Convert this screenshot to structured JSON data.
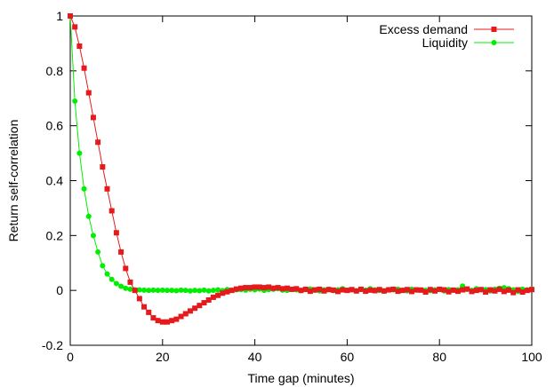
{
  "chart_data": {
    "type": "line",
    "title": "",
    "xlabel": "Time gap (minutes)",
    "ylabel": "Return self-correlation",
    "xlim": [
      0,
      100
    ],
    "ylim": [
      -0.2,
      1
    ],
    "xticks": [
      0,
      20,
      40,
      60,
      80,
      100
    ],
    "yticks": [
      -0.2,
      0,
      0.2,
      0.4,
      0.6,
      0.8,
      1
    ],
    "xtick_labels": [
      "0",
      "20",
      "40",
      "60",
      "80",
      "100"
    ],
    "ytick_labels": [
      "-0.2",
      "0",
      "0.2",
      "0.4",
      "0.6",
      "0.8",
      "1"
    ],
    "grid": false,
    "legend_position": "top-right",
    "series": [
      {
        "name": "Excess demand",
        "color": "#e41a1c",
        "marker": "square",
        "x": [
          0,
          1,
          2,
          3,
          4,
          5,
          6,
          7,
          8,
          9,
          10,
          11,
          12,
          13,
          14,
          15,
          16,
          17,
          18,
          19,
          20,
          21,
          22,
          23,
          24,
          25,
          26,
          27,
          28,
          29,
          30,
          31,
          32,
          33,
          34,
          35,
          36,
          37,
          38,
          39,
          40,
          41,
          42,
          43,
          44,
          45,
          46,
          47,
          48,
          49,
          50,
          51,
          52,
          53,
          54,
          55,
          56,
          57,
          58,
          59,
          60,
          61,
          62,
          63,
          64,
          65,
          66,
          67,
          68,
          69,
          70,
          71,
          72,
          73,
          74,
          75,
          76,
          77,
          78,
          79,
          80,
          81,
          82,
          83,
          84,
          85,
          86,
          87,
          88,
          89,
          90,
          91,
          92,
          93,
          94,
          95,
          96,
          97,
          98,
          99,
          100
        ],
        "y": [
          1.0,
          0.96,
          0.89,
          0.81,
          0.72,
          0.63,
          0.54,
          0.45,
          0.37,
          0.29,
          0.21,
          0.14,
          0.08,
          0.03,
          0.0,
          -0.03,
          -0.06,
          -0.08,
          -0.1,
          -0.11,
          -0.115,
          -0.115,
          -0.11,
          -0.105,
          -0.095,
          -0.085,
          -0.075,
          -0.065,
          -0.055,
          -0.045,
          -0.035,
          -0.025,
          -0.018,
          -0.01,
          -0.005,
          0.0,
          0.005,
          0.008,
          0.01,
          0.01,
          0.012,
          0.012,
          0.01,
          0.012,
          0.008,
          0.01,
          0.006,
          0.008,
          0.004,
          0.006,
          0.0,
          0.004,
          -0.003,
          0.002,
          0.004,
          -0.002,
          0.003,
          0.001,
          -0.004,
          0.002,
          0.0,
          0.003,
          -0.002,
          0.004,
          -0.003,
          0.001,
          -0.001,
          0.003,
          -0.002,
          0.002,
          0.004,
          -0.003,
          0.0,
          0.003,
          -0.004,
          0.002,
          0.001,
          -0.006,
          0.003,
          -0.002,
          0.004,
          0.002,
          -0.005,
          0.001,
          -0.003,
          0.002,
          0.005,
          -0.004,
          0.0,
          0.003,
          -0.006,
          0.002,
          -0.002,
          0.004,
          -0.004,
          0.001,
          -0.008,
          0.002,
          -0.006,
          0.0,
          0.003
        ]
      },
      {
        "name": "Liquidity",
        "color": "#00ee00",
        "marker": "circle",
        "x": [
          0,
          1,
          2,
          3,
          4,
          5,
          6,
          7,
          8,
          9,
          10,
          11,
          12,
          13,
          14,
          15,
          16,
          17,
          18,
          19,
          20,
          21,
          22,
          23,
          24,
          25,
          26,
          27,
          28,
          29,
          30,
          31,
          32,
          33,
          34,
          35,
          36,
          37,
          38,
          39,
          40,
          41,
          42,
          43,
          44,
          45,
          46,
          47,
          48,
          49,
          50,
          51,
          52,
          53,
          54,
          55,
          56,
          57,
          58,
          59,
          60,
          61,
          62,
          63,
          64,
          65,
          66,
          67,
          68,
          69,
          70,
          71,
          72,
          73,
          74,
          75,
          76,
          77,
          78,
          79,
          80,
          81,
          82,
          83,
          84,
          85,
          86,
          87,
          88,
          89,
          90,
          91,
          92,
          93,
          94,
          95,
          96,
          97,
          98,
          99,
          100
        ],
        "y": [
          1.0,
          0.69,
          0.5,
          0.37,
          0.27,
          0.2,
          0.14,
          0.09,
          0.06,
          0.04,
          0.025,
          0.015,
          0.008,
          0.004,
          0.002,
          0.002,
          0.001,
          0.0,
          0.001,
          0.0,
          0.001,
          0.0,
          0.0,
          -0.001,
          0.001,
          0.0,
          -0.002,
          0.0,
          -0.001,
          0.001,
          -0.002,
          0.0,
          0.002,
          -0.001,
          0.003,
          0.0,
          0.002,
          0.003,
          0.001,
          0.004,
          0.002,
          0.005,
          0.0,
          0.003,
          0.004,
          0.006,
          0.001,
          0.0,
          0.004,
          0.002,
          -0.001,
          0.003,
          0.005,
          0.0,
          -0.002,
          0.002,
          0.004,
          -0.001,
          0.002,
          0.006,
          0.001,
          0.002,
          -0.002,
          0.004,
          0.001,
          0.006,
          0.002,
          0.0,
          -0.003,
          0.003,
          0.002,
          0.004,
          0.0,
          -0.002,
          0.004,
          0.001,
          0.002,
          0.0,
          -0.001,
          0.002,
          0.003,
          -0.002,
          0.003,
          0.001,
          0.002,
          0.016,
          0.004,
          0.0,
          0.006,
          0.002,
          0.003,
          -0.002,
          0.004,
          0.008,
          0.01,
          0.006,
          0.002,
          -0.003,
          0.004,
          0.002,
          0.005
        ]
      }
    ]
  }
}
